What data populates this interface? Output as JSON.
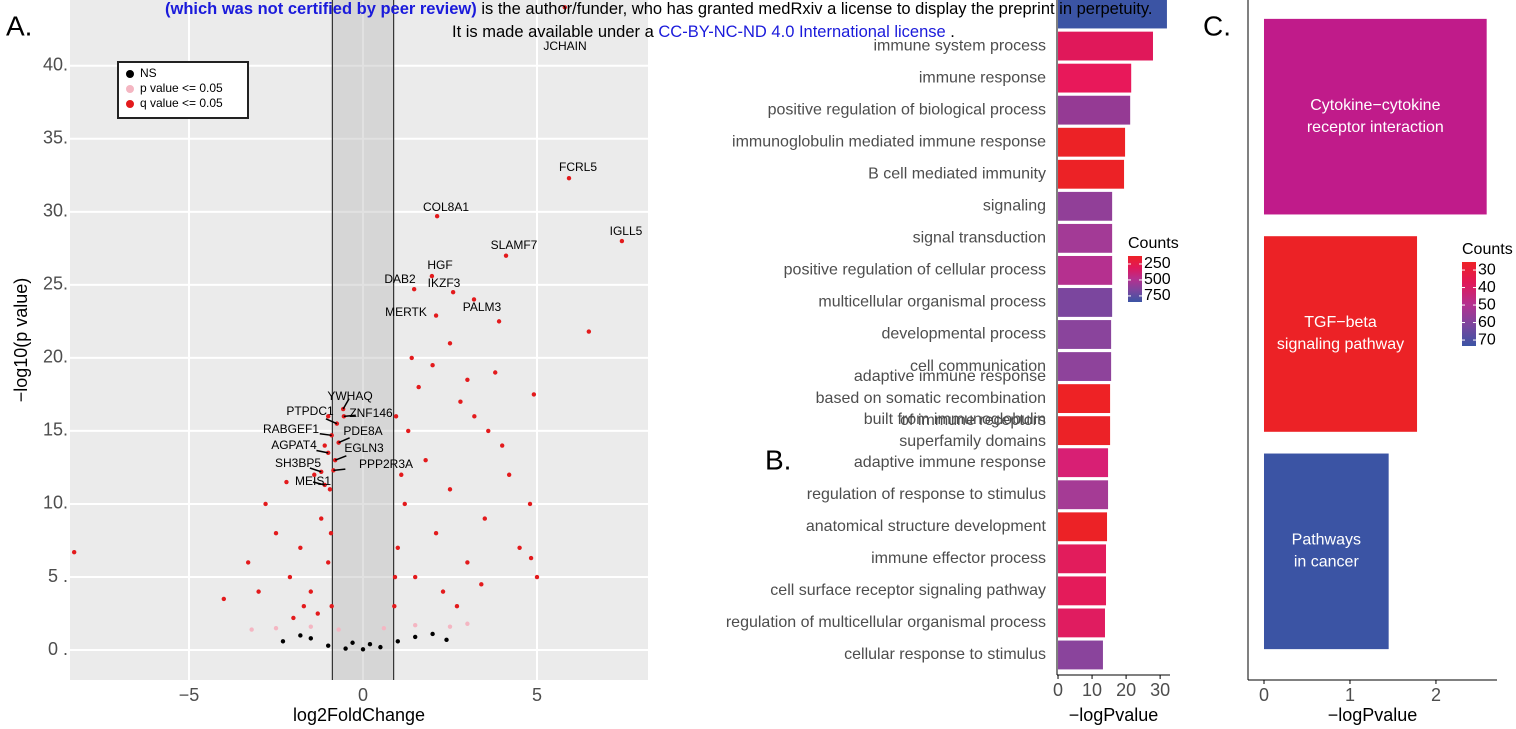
{
  "notice": {
    "line1": [
      "(which was not certified by peer review)",
      " is the author/funder, who has granted medRxiv a license to display the preprint in perpetuity."
    ],
    "line2": [
      "It is made available under a ",
      "CC-BY-NC-ND 4.0 International license",
      " ."
    ]
  },
  "chart_data": [
    {
      "type": "scatter",
      "panel": "A.",
      "x_label": "log2FoldChange",
      "y_label": "−log10(p value)",
      "xlim": [
        -8.42,
        8.19
      ],
      "ylim": [
        -2.05,
        44.5
      ],
      "xticks": [
        {
          "value": -5,
          "label": "−5"
        },
        0,
        5
      ],
      "yticks": [
        {
          "value": 0,
          "label": "0 ."
        },
        {
          "value": 5,
          "label": "5 ."
        },
        {
          "value": 10,
          "label": "10."
        },
        {
          "value": 15,
          "label": "15."
        },
        {
          "value": 20,
          "label": "20."
        },
        {
          "value": 25,
          "label": "25."
        },
        {
          "value": 30,
          "label": "30."
        },
        {
          "value": 35,
          "label": "35."
        },
        {
          "value": 40,
          "label": "40."
        }
      ],
      "vlines": [
        -0.88,
        0.88
      ],
      "grid": true,
      "series": [
        {
          "name": "NS",
          "color": "#000000",
          "x": [
            -2.3,
            -1.8,
            -1.5,
            -1.0,
            -0.5,
            0,
            0.5,
            1.0,
            1.5,
            2.0,
            2.4,
            0.2,
            -0.3
          ],
          "values": [
            0.6,
            1.0,
            0.8,
            0.3,
            0.1,
            0.05,
            0.2,
            0.6,
            0.9,
            1.1,
            0.7,
            0.4,
            0.5
          ]
        },
        {
          "name": "p value <= 0.05",
          "color": "#f4b6c2",
          "x": [
            -2.5,
            -1.5,
            -0.7,
            0.6,
            1.5,
            2.5,
            3.0,
            -3.2
          ],
          "values": [
            1.5,
            1.6,
            1.4,
            1.5,
            1.7,
            1.6,
            1.8,
            1.4
          ]
        },
        {
          "name": "q value <= 0.05",
          "color": "#e31a1c",
          "x": [
            5.8,
            5.92,
            7.44,
            4.11,
            2.13,
            1.98,
            1.47,
            2.59,
            3.19,
            2.1,
            -0.57,
            -0.75,
            -0.55,
            -0.9,
            -0.7,
            -1.0,
            -0.8,
            -1.2,
            -0.85,
            -1.1,
            3.91,
            6.49,
            4.91,
            4.83,
            -8.3,
            -0.9,
            -1.0,
            -1.2,
            -1.5,
            -1.8,
            -2.1,
            -2.5,
            -3.0,
            -2.8,
            -1.4,
            -1.1,
            -0.95,
            -2.2,
            -1.7,
            -3.3,
            -4.0,
            -0.92,
            -1.3,
            -2.0,
            -1.0,
            0.9,
            1.0,
            1.2,
            1.5,
            1.8,
            2.1,
            2.5,
            3.0,
            3.5,
            4.0,
            4.5,
            1.3,
            1.6,
            2.0,
            2.8,
            3.2,
            3.8,
            4.2,
            1.1,
            0.95,
            2.3,
            2.7,
            3.4,
            5.0,
            4.8,
            1.4,
            2.5,
            3.0,
            3.6,
            0.92
          ],
          "values": [
            44,
            32.3,
            28.0,
            27.0,
            29.7,
            25.6,
            24.7,
            24.5,
            24.0,
            22.9,
            16.5,
            15.5,
            16.0,
            14.7,
            14.2,
            13.5,
            13.0,
            12.2,
            12.3,
            11.3,
            22.5,
            21.8,
            17.5,
            6.3,
            6.7,
            3,
            6,
            9,
            4,
            7,
            5,
            8,
            4,
            10,
            12,
            14,
            11,
            11.5,
            3,
            6,
            3.5,
            8,
            2.5,
            2.2,
            16,
            3,
            7,
            10,
            5,
            13,
            8,
            11,
            6,
            9,
            14,
            7,
            15,
            18,
            19.5,
            17,
            16,
            19,
            12,
            12,
            16,
            4,
            3,
            4.5,
            5,
            10,
            20,
            21,
            18.5,
            15,
            5
          ],
          "labels": [
            "JCHAIN",
            "FCRL5",
            "IGLL5",
            "SLAMF7",
            "COL8A1",
            "HGF",
            "DAB2",
            "IKZF3",
            "PALM3",
            "MERTK",
            "YWHAQ",
            "PTPDC1",
            "ZNF146",
            "RABGEF1",
            "PDE8A",
            "AGPAT4",
            "EGLN3",
            "SH3BP5",
            "PPP2R3A",
            "MEIS1",
            null,
            null,
            null,
            null,
            null,
            null,
            null,
            null,
            null,
            null,
            null,
            null,
            null,
            null,
            null,
            null,
            null,
            null,
            null,
            null,
            null,
            null,
            null,
            null,
            null,
            null,
            null,
            null,
            null,
            null,
            null,
            null,
            null,
            null,
            null,
            null,
            null,
            null,
            null,
            null,
            null,
            null,
            null,
            null,
            null,
            null,
            null,
            null,
            null,
            null,
            null,
            null,
            null,
            null,
            null
          ]
        }
      ]
    },
    {
      "type": "bar",
      "orientation": "horizontal",
      "panel": "B.",
      "x_label": "−logPvalue",
      "xlim": [
        -0.3,
        32.9
      ],
      "xticks": [
        0,
        10,
        20,
        30
      ],
      "categories": [
        null,
        "immune system process",
        "immune response",
        "positive regulation of biological process",
        "immunoglobulin mediated immune response",
        "B cell mediated immunity",
        "signaling",
        "signal transduction",
        "positive regulation of cellular process",
        "multicellular organismal process",
        "developmental process",
        "cell communication",
        [
          "adaptive immune response",
          "based on somatic recombination",
          "of immune receptors"
        ],
        [
          "built from immunoglobulin",
          "superfamily domains"
        ],
        "adaptive immune response",
        "regulation of response to stimulus",
        "anatomical structure development",
        "immune effector process",
        "cell surface receptor signaling pathway",
        "regulation of multicellular organismal process",
        "cellular response to stimulus"
      ],
      "values": [
        32.0,
        27.9,
        21.5,
        21.2,
        19.7,
        19.4,
        15.9,
        15.9,
        15.9,
        15.9,
        15.6,
        15.6,
        15.3,
        15.3,
        14.7,
        14.7,
        14.4,
        14.1,
        14.1,
        13.8,
        13.2
      ],
      "colors": [
        "#3b54a4",
        "#e0185a",
        "#e8185a",
        "#953a94",
        "#ec2226",
        "#ec2226",
        "#913f98",
        "#a33a96",
        "#b5308f",
        "#7b469e",
        "#8a449c",
        "#8e439b",
        "#ee2225",
        "#ec2227",
        "#d81f74",
        "#a53b95",
        "#ec2226",
        "#e21c5c",
        "#e41b5a",
        "#e01c60",
        "#8a449c"
      ],
      "colorbar": {
        "title": "Counts",
        "lim": [
          125,
          845
        ],
        "ticks": [
          250,
          500,
          750
        ],
        "colors": [
          "#ee2226",
          "#e0185a",
          "#b5308f",
          "#7b469e",
          "#3b54a4"
        ]
      }
    },
    {
      "type": "bar",
      "orientation": "horizontal",
      "panel": "C.",
      "x_label": "−logPvalue",
      "xlim": [
        -0.186,
        2.71
      ],
      "xticks": [
        0,
        1,
        2
      ],
      "categories": [
        [
          "Cytokine−cytokine",
          "receptor interaction"
        ],
        [
          "TGF−beta",
          "signaling pathway"
        ],
        [
          "Pathways",
          "in cancer"
        ]
      ],
      "values": [
        2.59,
        1.78,
        1.45
      ],
      "colors": [
        "#c01b8a",
        "#ec2226",
        "#3b54a4"
      ],
      "colorbar": {
        "title": "Counts",
        "lim": [
          25.4,
          73.4
        ],
        "ticks": [
          30,
          40,
          50,
          60,
          70
        ],
        "colors": [
          "#ee2226",
          "#e0185a",
          "#b5308f",
          "#7b469e",
          "#3b54a4"
        ]
      }
    }
  ]
}
